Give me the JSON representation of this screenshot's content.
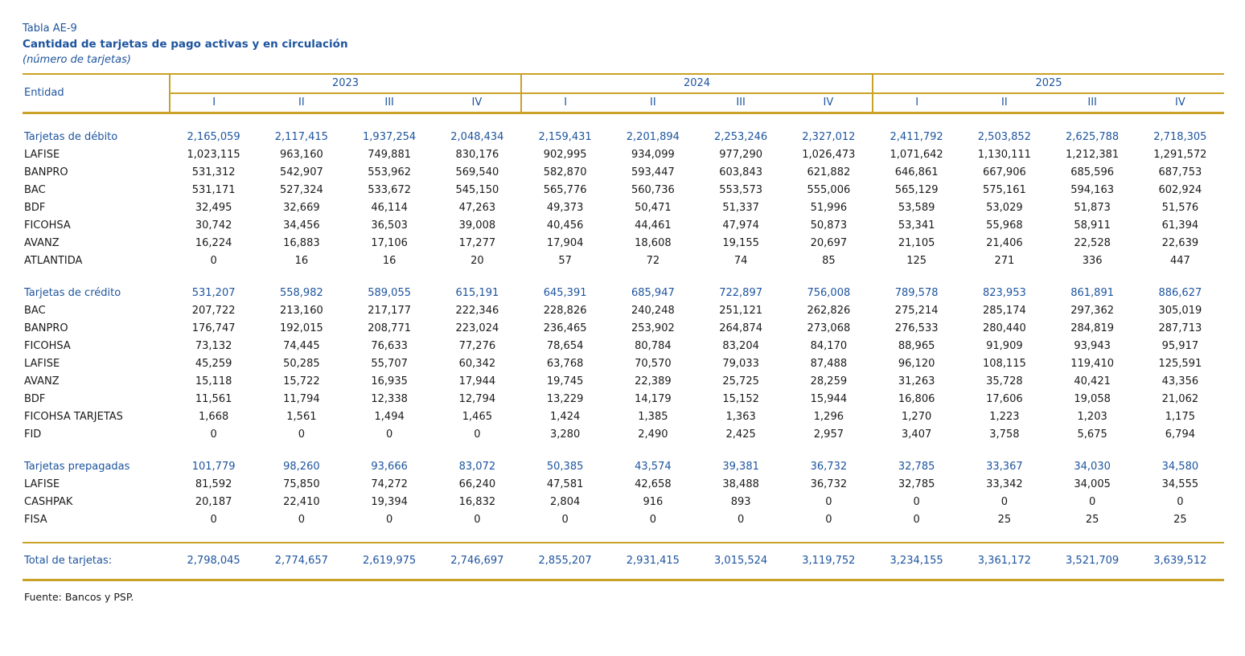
{
  "colors": {
    "blue": "#1D549E",
    "gold": "#C9A227",
    "ink": "#1A1A1A"
  },
  "page": {
    "table_code": "Tabla AE-9",
    "title": "Cantidad de tarjetas de pago activas y en circulación",
    "subtitle": "(número de tarjetas)",
    "source": "Fuente: Bancos y PSP."
  },
  "table": {
    "entity_header": "Entidad",
    "year_groups": [
      {
        "year": "2023",
        "quarters": [
          "I",
          "II",
          "III",
          "IV"
        ]
      },
      {
        "year": "2024",
        "quarters": [
          "I",
          "II",
          "III",
          "IV"
        ]
      },
      {
        "year": "2025",
        "quarters": [
          "I",
          "II",
          "III",
          "IV"
        ]
      }
    ],
    "sections": [
      {
        "name": "Tarjetas de débito",
        "values": [
          "2,165,059",
          "2,117,415",
          "1,937,254",
          "2,048,434",
          "2,159,431",
          "2,201,894",
          "2,253,246",
          "2,327,012",
          "2,411,792",
          "2,503,852",
          "2,625,788",
          "2,718,305"
        ],
        "rows": [
          {
            "name": "LAFISE",
            "values": [
              "1,023,115",
              "963,160",
              "749,881",
              "830,176",
              "902,995",
              "934,099",
              "977,290",
              "1,026,473",
              "1,071,642",
              "1,130,111",
              "1,212,381",
              "1,291,572"
            ]
          },
          {
            "name": "BANPRO",
            "values": [
              "531,312",
              "542,907",
              "553,962",
              "569,540",
              "582,870",
              "593,447",
              "603,843",
              "621,882",
              "646,861",
              "667,906",
              "685,596",
              "687,753"
            ]
          },
          {
            "name": "BAC",
            "values": [
              "531,171",
              "527,324",
              "533,672",
              "545,150",
              "565,776",
              "560,736",
              "553,573",
              "555,006",
              "565,129",
              "575,161",
              "594,163",
              "602,924"
            ]
          },
          {
            "name": "BDF",
            "values": [
              "32,495",
              "32,669",
              "46,114",
              "47,263",
              "49,373",
              "50,471",
              "51,337",
              "51,996",
              "53,589",
              "53,029",
              "51,873",
              "51,576"
            ]
          },
          {
            "name": "FICOHSA",
            "values": [
              "30,742",
              "34,456",
              "36,503",
              "39,008",
              "40,456",
              "44,461",
              "47,974",
              "50,873",
              "53,341",
              "55,968",
              "58,911",
              "61,394"
            ]
          },
          {
            "name": "AVANZ",
            "values": [
              "16,224",
              "16,883",
              "17,106",
              "17,277",
              "17,904",
              "18,608",
              "19,155",
              "20,697",
              "21,105",
              "21,406",
              "22,528",
              "22,639"
            ]
          },
          {
            "name": "ATLANTIDA",
            "values": [
              "0",
              "16",
              "16",
              "20",
              "57",
              "72",
              "74",
              "85",
              "125",
              "271",
              "336",
              "447"
            ]
          }
        ]
      },
      {
        "name": "Tarjetas de crédito",
        "values": [
          "531,207",
          "558,982",
          "589,055",
          "615,191",
          "645,391",
          "685,947",
          "722,897",
          "756,008",
          "789,578",
          "823,953",
          "861,891",
          "886,627"
        ],
        "rows": [
          {
            "name": "BAC",
            "values": [
              "207,722",
              "213,160",
              "217,177",
              "222,346",
              "228,826",
              "240,248",
              "251,121",
              "262,826",
              "275,214",
              "285,174",
              "297,362",
              "305,019"
            ]
          },
          {
            "name": "BANPRO",
            "values": [
              "176,747",
              "192,015",
              "208,771",
              "223,024",
              "236,465",
              "253,902",
              "264,874",
              "273,068",
              "276,533",
              "280,440",
              "284,819",
              "287,713"
            ]
          },
          {
            "name": "FICOHSA",
            "values": [
              "73,132",
              "74,445",
              "76,633",
              "77,276",
              "78,654",
              "80,784",
              "83,204",
              "84,170",
              "88,965",
              "91,909",
              "93,943",
              "95,917"
            ]
          },
          {
            "name": "LAFISE",
            "values": [
              "45,259",
              "50,285",
              "55,707",
              "60,342",
              "63,768",
              "70,570",
              "79,033",
              "87,488",
              "96,120",
              "108,115",
              "119,410",
              "125,591"
            ]
          },
          {
            "name": "AVANZ",
            "values": [
              "15,118",
              "15,722",
              "16,935",
              "17,944",
              "19,745",
              "22,389",
              "25,725",
              "28,259",
              "31,263",
              "35,728",
              "40,421",
              "43,356"
            ]
          },
          {
            "name": "BDF",
            "values": [
              "11,561",
              "11,794",
              "12,338",
              "12,794",
              "13,229",
              "14,179",
              "15,152",
              "15,944",
              "16,806",
              "17,606",
              "19,058",
              "21,062"
            ]
          },
          {
            "name": "FICOHSA TARJETAS",
            "values": [
              "1,668",
              "1,561",
              "1,494",
              "1,465",
              "1,424",
              "1,385",
              "1,363",
              "1,296",
              "1,270",
              "1,223",
              "1,203",
              "1,175"
            ]
          },
          {
            "name": "FID",
            "values": [
              "0",
              "0",
              "0",
              "0",
              "3,280",
              "2,490",
              "2,425",
              "2,957",
              "3,407",
              "3,758",
              "5,675",
              "6,794"
            ]
          }
        ]
      },
      {
        "name": "Tarjetas prepagadas",
        "values": [
          "101,779",
          "98,260",
          "93,666",
          "83,072",
          "50,385",
          "43,574",
          "39,381",
          "36,732",
          "32,785",
          "33,367",
          "34,030",
          "34,580"
        ],
        "rows": [
          {
            "name": "LAFISE",
            "values": [
              "81,592",
              "75,850",
              "74,272",
              "66,240",
              "47,581",
              "42,658",
              "38,488",
              "36,732",
              "32,785",
              "33,342",
              "34,005",
              "34,555"
            ]
          },
          {
            "name": "CASHPAK",
            "values": [
              "20,187",
              "22,410",
              "19,394",
              "16,832",
              "2,804",
              "916",
              "893",
              "0",
              "0",
              "0",
              "0",
              "0"
            ]
          },
          {
            "name": "FISA",
            "values": [
              "0",
              "0",
              "0",
              "0",
              "0",
              "0",
              "0",
              "0",
              "0",
              "25",
              "25",
              "25"
            ]
          }
        ]
      }
    ],
    "total": {
      "label": "Total de tarjetas:",
      "values": [
        "2,798,045",
        "2,774,657",
        "2,619,975",
        "2,746,697",
        "2,855,207",
        "2,931,415",
        "3,015,524",
        "3,119,752",
        "3,234,155",
        "3,361,172",
        "3,521,709",
        "3,639,512"
      ]
    }
  }
}
